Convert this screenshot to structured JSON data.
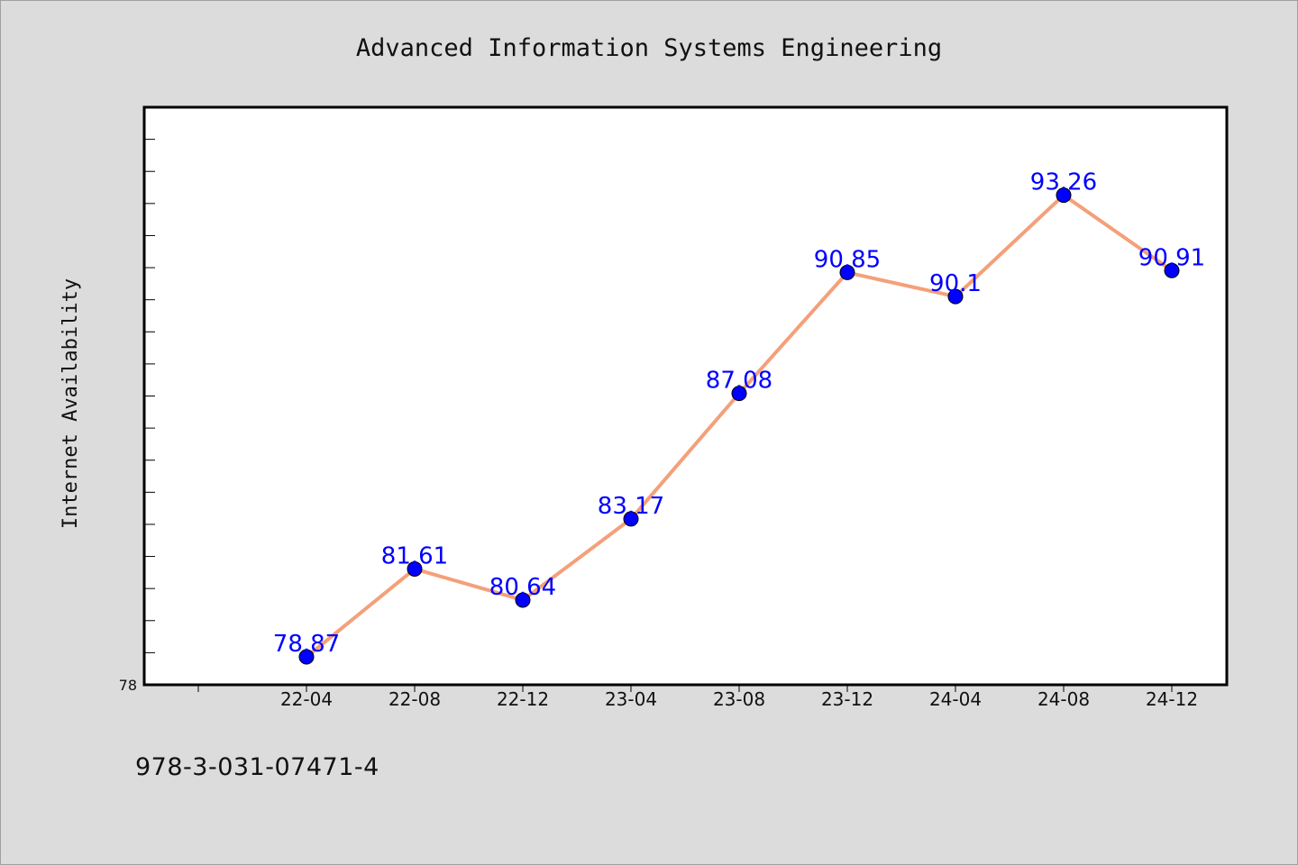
{
  "chart_data": {
    "type": "line",
    "title": "Advanced Information Systems Engineering",
    "xlabel": "",
    "ylabel": "Internet Availability",
    "categories": [
      "22-04",
      "22-08",
      "22-12",
      "23-04",
      "23-08",
      "23-12",
      "24-04",
      "24-08",
      "24-12"
    ],
    "values": [
      78.87,
      81.61,
      80.64,
      83.17,
      87.08,
      90.85,
      90.1,
      93.26,
      90.91
    ],
    "value_labels": [
      "78.87",
      "81.61",
      "80.64",
      "83.17",
      "87.08",
      "90.85",
      "90.1",
      "93.26",
      "90.91"
    ],
    "y_tick_label": "78",
    "ylim": [
      78,
      96
    ],
    "grid": false,
    "line_color": "#f4a07a",
    "marker_color": "#0000ff",
    "label_color": "#0000ff"
  },
  "footer": {
    "code": "978-3-031-07471-4"
  }
}
